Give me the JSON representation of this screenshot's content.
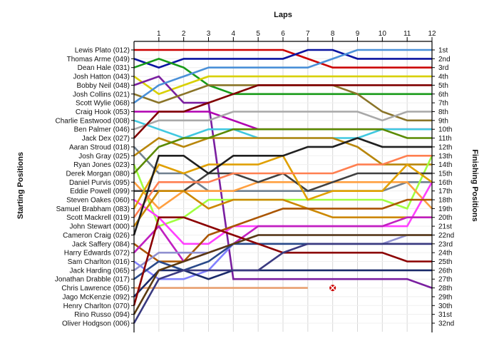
{
  "chart_data": {
    "type": "line",
    "xlabel": "Laps",
    "ylabel_left": "Starting Positions",
    "ylabel_right": "Finishing Positions",
    "laps": [
      1,
      2,
      3,
      4,
      5,
      6,
      7,
      8,
      9,
      10,
      11,
      12
    ],
    "drivers": [
      "Lewis Plato (012)",
      "Thomas Arme (049)",
      "Dean Hale (031)",
      "Josh Hatton (043)",
      "Bobby Neil (048)",
      "Josh Collins (021)",
      "Scott Wylie (068)",
      "Craig Hook (053)",
      "Charlie Eastwood (008)",
      "Ben Palmer (046)",
      "Jack Dex (027)",
      "Aaran Stroud (018)",
      "Josh Gray (025)",
      "Ryan Jones (023)",
      "Derek Morgan (080)",
      "Daniel Purvis (095)",
      "Eddie Powell (099)",
      "Steven Oakes (060)",
      "Samuel Brabham (083)",
      "Scott Mackrell (019)",
      "John Stewart (000)",
      "Cameron Craig (026)",
      "Jack Saffery (084)",
      "Harry Edwards (072)",
      "Sam Charlton (016)",
      "Jack Harding (065)",
      "Jonathan Drabble (017)",
      "Chris Lawrence (056)",
      "Jago McKenzie (092)",
      "Henry Charlton (070)",
      "Rino Russo (094)",
      "Oliver Hodgson (006)"
    ],
    "finishing": [
      "1st",
      "2nd",
      "3rd",
      "4th",
      "5th",
      "6th",
      "7th",
      "8th",
      "9th",
      "10th",
      "11th",
      "12th",
      "13th",
      "14th",
      "15th",
      "16th",
      "17th",
      "18th",
      "19th",
      "20th",
      "21st",
      "22nd",
      "23rd",
      "24th",
      "25th",
      "26th",
      "27th",
      "28th",
      "29th",
      "30th",
      "31st",
      "32nd"
    ],
    "series": [
      {
        "color": "#cc0000",
        "positions": [
          1,
          1,
          1,
          1,
          1,
          1,
          1,
          2,
          3,
          3,
          3,
          3,
          3
        ]
      },
      {
        "color": "#0a14a0",
        "positions": [
          2,
          3,
          2,
          2,
          2,
          2,
          2,
          1,
          1,
          2,
          2,
          2,
          2
        ]
      },
      {
        "color": "#189a18",
        "positions": [
          3,
          2,
          3,
          5,
          6,
          6,
          6,
          6,
          6,
          6,
          6,
          6,
          6
        ]
      },
      {
        "color": "#d8d000",
        "positions": [
          4,
          6,
          5,
          4,
          4,
          4,
          4,
          4,
          4,
          4,
          4,
          4,
          4
        ]
      },
      {
        "color": "#7a1fa0",
        "positions": [
          5,
          4,
          7,
          7,
          27,
          27,
          27,
          27,
          27,
          27,
          27,
          27,
          28
        ]
      },
      {
        "color": "#8a7428",
        "positions": [
          6,
          7,
          6,
          5,
          5,
          5,
          5,
          5,
          5,
          6,
          8,
          9,
          9
        ]
      },
      {
        "color": "#4a90d8",
        "positions": [
          7,
          5,
          4,
          3,
          3,
          3,
          3,
          3,
          2,
          1,
          1,
          1,
          1
        ]
      },
      {
        "color": "#b000b0",
        "positions": [
          8,
          8,
          8,
          8,
          9,
          10,
          10,
          10,
          10,
          10,
          10,
          10,
          10
        ]
      },
      {
        "color": "#40c8e0",
        "positions": [
          9,
          10,
          11,
          10,
          10,
          11,
          11,
          11,
          11,
          11,
          10,
          10,
          10
        ]
      },
      {
        "color": "#a8a8a8",
        "positions": [
          10,
          9,
          9,
          9,
          8,
          8,
          8,
          8,
          8,
          8,
          9,
          8,
          8
        ]
      },
      {
        "color": "#800000",
        "positions": [
          11,
          8,
          8,
          7,
          6,
          5,
          5,
          5,
          5,
          5,
          5,
          5,
          5
        ]
      },
      {
        "color": "#708090",
        "positions": [
          12,
          15,
          15,
          17,
          17,
          17,
          17,
          17,
          17,
          17,
          17,
          16,
          16
        ]
      },
      {
        "color": "#b8860b",
        "positions": [
          13,
          11,
          12,
          11,
          11,
          11,
          11,
          11,
          11,
          12,
          14,
          14,
          14
        ]
      },
      {
        "color": "#a0ff40",
        "positions": [
          14,
          21,
          20,
          18,
          18,
          18,
          18,
          18,
          18,
          18,
          18,
          19,
          13
        ]
      },
      {
        "color": "#5a8a00",
        "positions": [
          15,
          12,
          11,
          11,
          10,
          10,
          10,
          10,
          10,
          10,
          10,
          11,
          11
        ]
      },
      {
        "color": "#ffa040",
        "positions": [
          16,
          19,
          17,
          17,
          17,
          16,
          16,
          16,
          16,
          16,
          16,
          16,
          19
        ]
      },
      {
        "color": "#404040",
        "positions": [
          17,
          17,
          17,
          15,
          15,
          16,
          15,
          17,
          16,
          15,
          15,
          15,
          15
        ]
      },
      {
        "color": "#ff40ff",
        "positions": [
          18,
          20,
          23,
          23,
          21,
          21,
          21,
          21,
          21,
          21,
          21,
          21,
          16
        ]
      },
      {
        "color": "#e0a000",
        "positions": [
          19,
          14,
          15,
          14,
          14,
          14,
          13,
          18,
          17,
          17,
          17,
          14,
          16
        ]
      },
      {
        "color": "#ff7f50",
        "positions": [
          20,
          16,
          16,
          16,
          15,
          15,
          15,
          15,
          15,
          14,
          14,
          13,
          13
        ]
      },
      {
        "color": "#cc8800",
        "positions": [
          21,
          17,
          17,
          19,
          18,
          18,
          18,
          19,
          20,
          20,
          20,
          20,
          20
        ]
      },
      {
        "color": "#202020",
        "positions": [
          22,
          13,
          13,
          15,
          13,
          13,
          13,
          12,
          12,
          11,
          12,
          12,
          12
        ]
      },
      {
        "color": "#aa5500",
        "positions": [
          23,
          25,
          25,
          22,
          21,
          20,
          19,
          19,
          19,
          19,
          19,
          18,
          18
        ]
      },
      {
        "color": "#c020c0",
        "positions": [
          24,
          21,
          25,
          24,
          23,
          21,
          21,
          21,
          21,
          21,
          21,
          20,
          20
        ]
      },
      {
        "color": "#8080ff",
        "positions": [
          25,
          27,
          27,
          26,
          23,
          22,
          22,
          22,
          22,
          22,
          22,
          22,
          22
        ]
      },
      {
        "color": "#9090d0",
        "positions": [
          26,
          24,
          24,
          24,
          23,
          23,
          23,
          23,
          23,
          23,
          23,
          22,
          22
        ]
      },
      {
        "color": "#2a4a8a",
        "positions": [
          27,
          25,
          26,
          25,
          23,
          23,
          23,
          23,
          23,
          23,
          23,
          23,
          23
        ]
      },
      {
        "color": "#e8a070",
        "positions": [
          28,
          28,
          28,
          28,
          28,
          28,
          28,
          28
        ]
      },
      {
        "color": "#1a2a6a",
        "positions": [
          29,
          26,
          26,
          27,
          26,
          26,
          26,
          26,
          26,
          26,
          26,
          26,
          26
        ]
      },
      {
        "color": "#8b0000",
        "positions": [
          30,
          20,
          20,
          21,
          22,
          23,
          24,
          24,
          24,
          24,
          24,
          25,
          25
        ]
      },
      {
        "color": "#5a3a10",
        "positions": [
          31,
          26,
          25,
          24,
          23,
          22,
          22,
          22,
          22,
          22,
          22,
          22,
          22
        ]
      },
      {
        "color": "#3a3a80",
        "positions": [
          32,
          27,
          26,
          26,
          26,
          26,
          24,
          23,
          23,
          23,
          23,
          23,
          23
        ]
      }
    ],
    "retired": {
      "driver_index": 27,
      "lap": 8
    },
    "grid": true,
    "ylim": [
      1,
      32
    ],
    "xlim": [
      0,
      12
    ]
  }
}
